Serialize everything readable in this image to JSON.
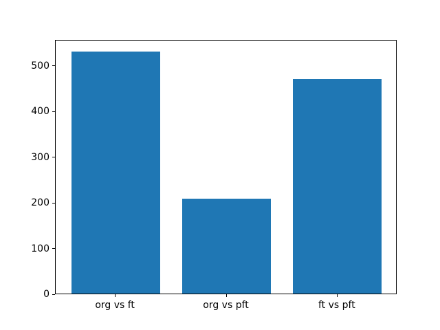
{
  "chart_data": {
    "type": "bar",
    "categories": [
      "org vs ft",
      "org vs pft",
      "ft vs pft"
    ],
    "values": [
      530,
      208,
      470
    ],
    "title": "",
    "xlabel": "",
    "ylabel": "",
    "ylim": [
      0,
      556.5
    ],
    "xlim": [
      -0.54,
      2.54
    ],
    "yticks": [
      0,
      100,
      200,
      300,
      400,
      500
    ],
    "bar_width": 0.8,
    "bar_color": "#1f77b4",
    "spine_color": "#000000",
    "tick_label_color": "#000000",
    "background_color": "#ffffff",
    "grid": false,
    "legend": null
  }
}
